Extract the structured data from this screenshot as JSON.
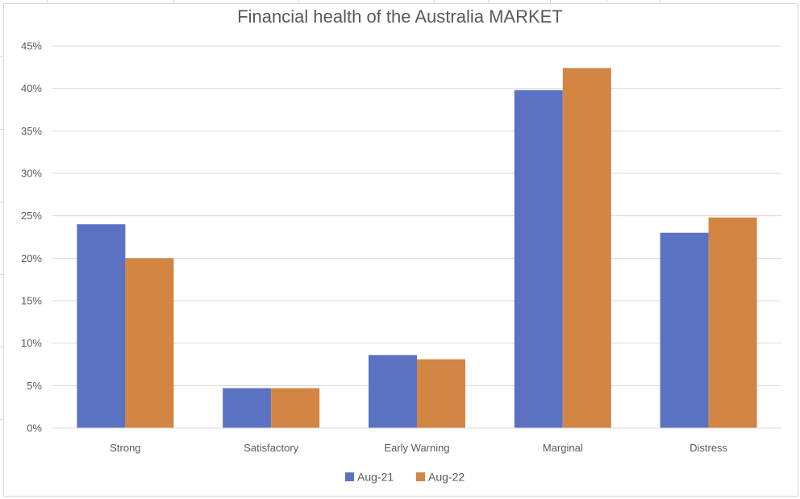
{
  "chart_data": {
    "type": "bar",
    "title": "Financial health of the Australia MARKET",
    "categories": [
      "Strong",
      "Satisfactory",
      "Early Warning",
      "Marginal",
      "Distress"
    ],
    "series": [
      {
        "name": "Aug-21",
        "color": "#5b72c2",
        "values": [
          24.0,
          4.7,
          8.6,
          39.8,
          23.0
        ]
      },
      {
        "name": "Aug-22",
        "color": "#d38544",
        "values": [
          20.0,
          4.7,
          8.1,
          42.4,
          24.8
        ]
      }
    ],
    "ylim": [
      0,
      45
    ],
    "yticks": [
      0,
      5,
      10,
      15,
      20,
      25,
      30,
      35,
      40,
      45
    ],
    "ytick_labels": [
      "0%",
      "5%",
      "10%",
      "15%",
      "20%",
      "25%",
      "30%",
      "35%",
      "40%",
      "45%"
    ],
    "y_unit": "%",
    "xlabel": "",
    "ylabel": "",
    "grid": true,
    "gridline_color": "#d9d9d9",
    "legend_position": "bottom"
  }
}
